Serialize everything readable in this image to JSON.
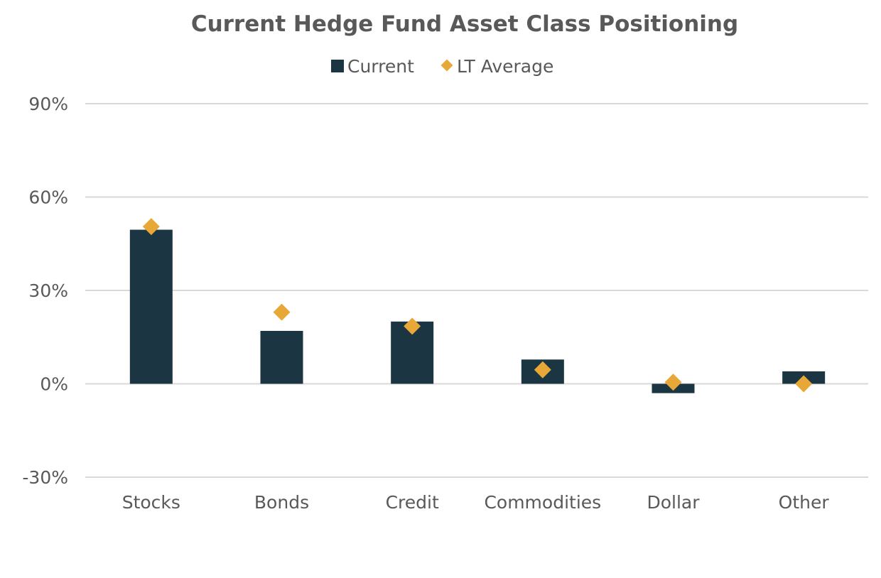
{
  "chart_data": {
    "type": "bar",
    "title": "Current Hedge Fund Asset Class Positioning",
    "xlabel": "",
    "ylabel": "",
    "categories": [
      "Stocks",
      "Bonds",
      "Credit",
      "Commodities",
      "Dollar",
      "Other"
    ],
    "series": [
      {
        "name": "Current",
        "kind": "bar",
        "values": [
          49.5,
          17,
          20,
          7.8,
          -3,
          4
        ],
        "color": "#1b3542"
      },
      {
        "name": "LT Average",
        "kind": "marker",
        "marker": "diamond",
        "values": [
          50.5,
          23,
          18.5,
          4.5,
          0.5,
          0
        ],
        "color": "#e8a838"
      }
    ],
    "ylim": [
      -30,
      90
    ],
    "yticks": [
      -30,
      0,
      30,
      60,
      90
    ],
    "ytick_labels": [
      "-30%",
      "0%",
      "30%",
      "60%",
      "90%"
    ],
    "grid": true,
    "legend_position": "top-center"
  },
  "colors": {
    "text": "#595959",
    "title": "#595959",
    "grid": "#d9d9d9"
  }
}
